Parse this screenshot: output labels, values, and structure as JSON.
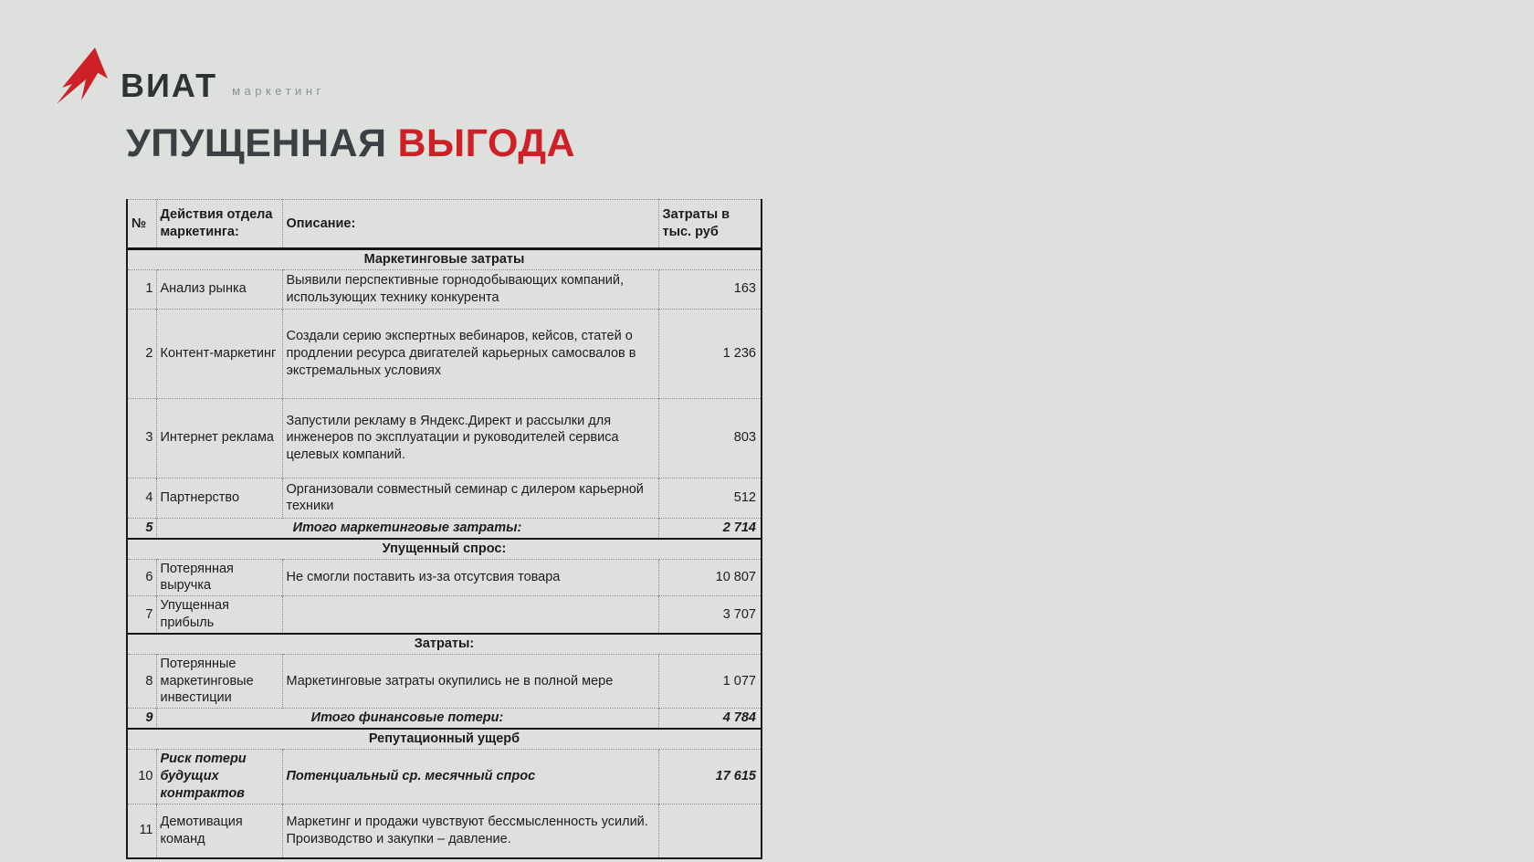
{
  "logo": {
    "brand": "ВИАТ",
    "subtitle": "маркетинг",
    "arrow_color": "#ce2127",
    "brand_color": "#2e3334",
    "subtitle_color": "#8b9190"
  },
  "title": {
    "part1": "УПУЩЕННАЯ",
    "part2": "ВЫГОДА",
    "part1_color": "#3a4043",
    "part2_color": "#ce2127"
  },
  "table": {
    "columns": [
      "№",
      "Действия отдела маркетинга:",
      "Описание:",
      "Затраты в тыс. руб"
    ],
    "rows": [
      {
        "type": "section",
        "label": "Маркетинговые затраты"
      },
      {
        "type": "item",
        "num": "1",
        "action": "Анализ рынка",
        "desc": "Выявили перспективные горнодобывающих компаний, использующих технику конкурента",
        "value": "163"
      },
      {
        "type": "item",
        "num": "2",
        "action": "Контент-маркетинг",
        "desc": "Создали серию экспертных вебинаров, кейсов, статей о продлении ресурса двигателей карьерных самосвалов в экстремальных условиях",
        "value": "1 236"
      },
      {
        "type": "item",
        "num": "3",
        "action": "Интернет реклама",
        "desc": "Запустили рекламу в Яндекс.Директ и рассылки для инженеров по эксплуатации и руководителей сервиса целевых компаний.",
        "value": "803"
      },
      {
        "type": "item",
        "num": "4",
        "action": "Партнерство",
        "desc": "Организовали совместный семинар с дилером карьерной техники",
        "value": "512"
      },
      {
        "type": "total",
        "num": "5",
        "label": "Итого маркетинговые затраты:",
        "value": "2 714"
      },
      {
        "type": "section",
        "label": "Упущенный спрос:"
      },
      {
        "type": "item",
        "num": "6",
        "action": "Потерянная выручка",
        "desc": "Не смогли поставить из-за отсутсвия товара",
        "value": "10 807"
      },
      {
        "type": "item",
        "num": "7",
        "action": "Упущенная прибыль",
        "desc": "",
        "value": "3 707"
      },
      {
        "type": "section",
        "label": "Затраты:"
      },
      {
        "type": "item",
        "num": "8",
        "action": "Потерянные маркетинговые инвестиции",
        "desc": "Маркетинговые затраты окупились не в полной мере",
        "value": "1 077"
      },
      {
        "type": "total",
        "num": "9",
        "label": "Итого финансовые потери:",
        "value": "4 784"
      },
      {
        "type": "section",
        "label": "Репутационный ущерб"
      },
      {
        "type": "item",
        "num": "10",
        "action": "Риск потери будущих контрактов",
        "desc": "Потенциальный ср. месячный спрос",
        "value": "17 615",
        "emphasis": true
      },
      {
        "type": "item",
        "num": "11",
        "action": "Демотивация команд",
        "desc": "Маркетинг и продажи чувствуют бессмысленность усилий. Производство и закупки – давление.",
        "value": ""
      }
    ]
  }
}
